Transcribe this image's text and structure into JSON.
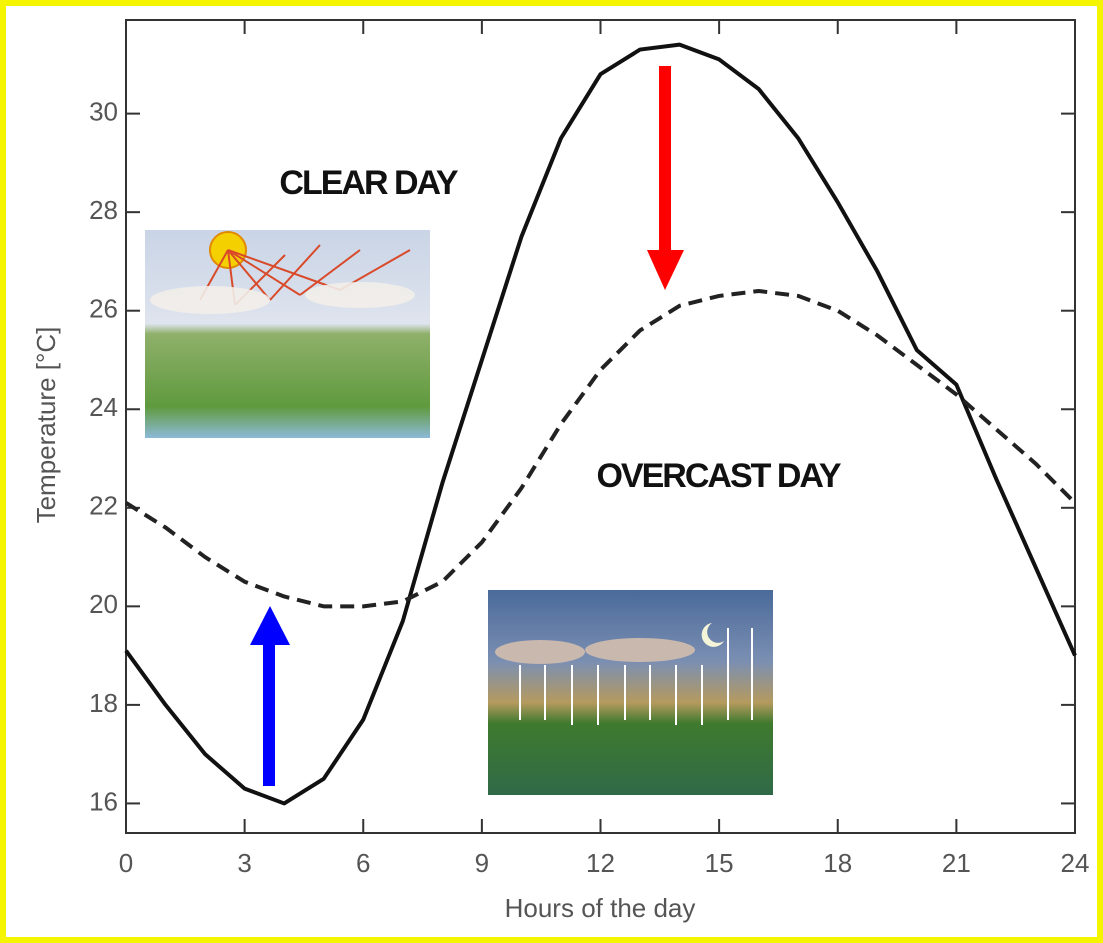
{
  "chart_data": {
    "type": "line",
    "x_label": "Hours of the day",
    "y_label": "Temperature [°C]",
    "x": [
      0,
      1,
      2,
      3,
      4,
      5,
      6,
      7,
      8,
      9,
      10,
      11,
      12,
      13,
      14,
      15,
      16,
      17,
      18,
      19,
      20,
      21,
      22,
      23,
      24
    ],
    "series": [
      {
        "name": "CLEAR DAY",
        "color": "#111111",
        "linestyle": "solid",
        "values": [
          19.1,
          18.0,
          17.0,
          16.3,
          16.0,
          16.5,
          17.7,
          19.7,
          22.5,
          25.0,
          27.5,
          29.5,
          30.8,
          31.3,
          31.4,
          31.1,
          30.5,
          29.5,
          28.2,
          26.8,
          25.2,
          24.5,
          22.6,
          20.8,
          19.0
        ]
      },
      {
        "name": "OVERCAST DAY",
        "color": "#222222",
        "linestyle": "dashed",
        "values": [
          22.1,
          21.6,
          21.0,
          20.5,
          20.2,
          20.0,
          20.0,
          20.1,
          20.5,
          21.3,
          22.4,
          23.7,
          24.8,
          25.6,
          26.1,
          26.3,
          26.4,
          26.3,
          26.0,
          25.5,
          24.9,
          24.3,
          23.6,
          22.9,
          22.1
        ]
      }
    ],
    "xlim": [
      0,
      24
    ],
    "xticks": [
      0,
      3,
      6,
      9,
      12,
      15,
      18,
      21,
      24
    ],
    "ylim": [
      15.4,
      31.9
    ],
    "yticks": [
      16,
      18,
      20,
      22,
      24,
      26,
      28,
      30
    ],
    "grid": false
  }
}
